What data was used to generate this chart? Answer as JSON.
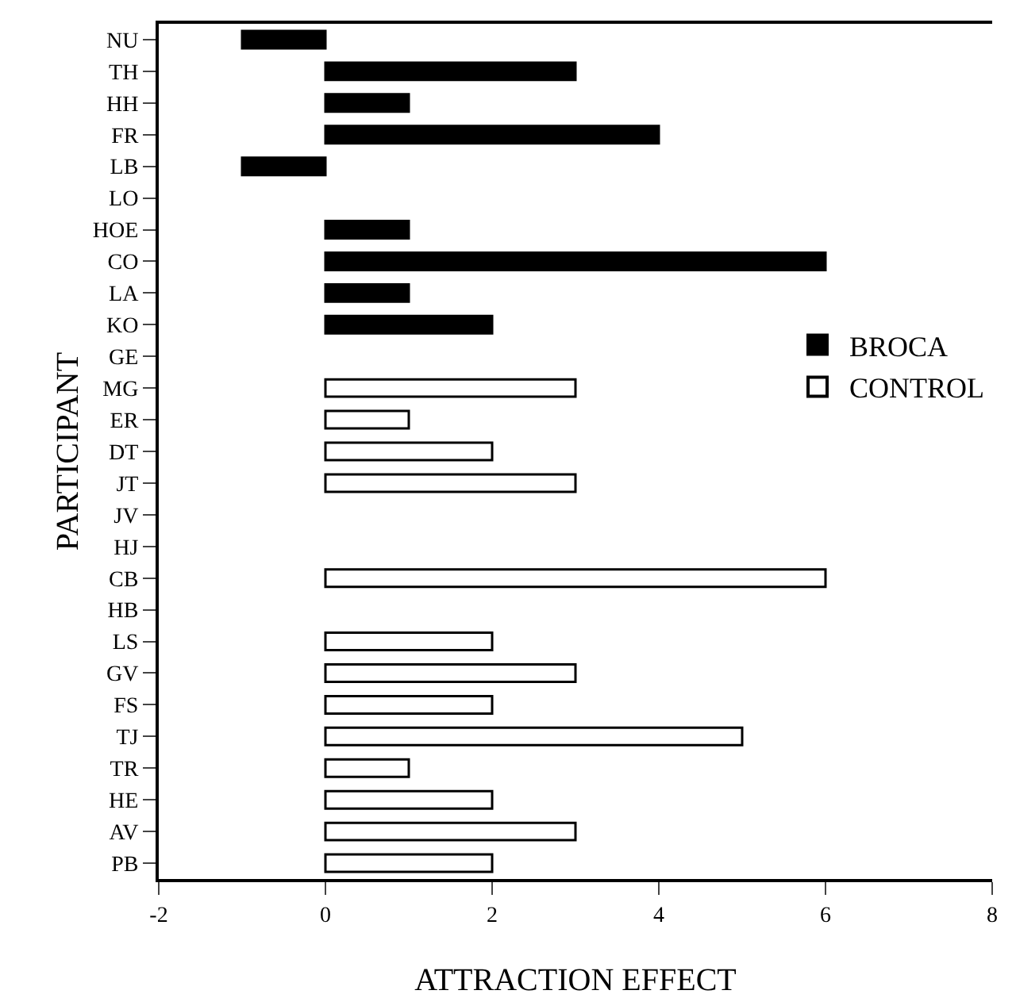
{
  "chart_data": {
    "type": "bar",
    "orientation": "horizontal",
    "xlabel": "ATTRACTION EFFECT",
    "ylabel": "PARTICIPANT",
    "categories": [
      "NU",
      "TH",
      "HH",
      "FR",
      "LB",
      "LO",
      "HOE",
      "CO",
      "LA",
      "KO",
      "GE",
      "MG",
      "ER",
      "DT",
      "JT",
      "JV",
      "HJ",
      "CB",
      "HB",
      "LS",
      "GV",
      "FS",
      "TJ",
      "TR",
      "HE",
      "AV",
      "PB"
    ],
    "series": [
      {
        "name": "BROCA",
        "color": "#000000",
        "values": [
          -1,
          3,
          1,
          4,
          -1,
          0,
          1,
          6,
          1,
          2,
          0,
          null,
          null,
          null,
          null,
          null,
          null,
          null,
          null,
          null,
          null,
          null,
          null,
          null,
          null,
          null,
          null
        ]
      },
      {
        "name": "CONTROL",
        "color": "#ffffff",
        "values": [
          null,
          null,
          null,
          null,
          null,
          null,
          null,
          null,
          null,
          null,
          null,
          3,
          1,
          2,
          3,
          0,
          0,
          6,
          0,
          2,
          3,
          2,
          5,
          1,
          2,
          3,
          2
        ]
      }
    ],
    "xlim": [
      -2,
      8
    ],
    "xticks": [
      -2,
      0,
      2,
      4,
      6,
      8
    ],
    "grid": false,
    "legend": "right"
  }
}
